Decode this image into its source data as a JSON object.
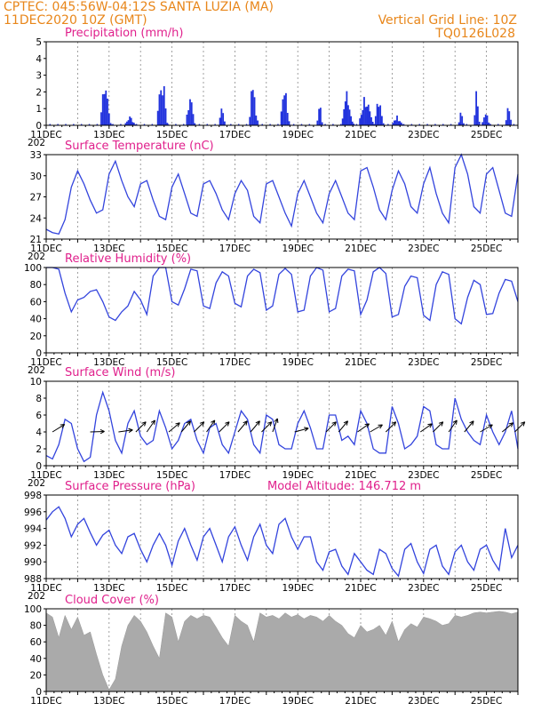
{
  "header": {
    "location": "CPTEC:   045:56W-04:12S   SANTA LUZIA (MA)",
    "run": "11DEC2020 10Z (GMT)",
    "grid_note": "Vertical Grid Line: 10Z",
    "code": "TQ0126L028",
    "altitude_label": "Model Altitude: 146.712 m"
  },
  "colors": {
    "header": "#e8861a",
    "title": "#e0208c",
    "line": "#3344dd",
    "bar": "#2233dd",
    "cloud": "#aaaaaa",
    "grid": "#888888"
  },
  "x_labels": [
    "11DEC",
    "13DEC",
    "15DEC",
    "17DEC",
    "19DEC",
    "21DEC",
    "23DEC",
    "25DEC"
  ],
  "year_fragment": "202",
  "chart_data": [
    {
      "type": "bar",
      "title": "Precipitation (mm/h)",
      "ylim": [
        0,
        5
      ],
      "yticks": [
        "0",
        "1",
        "2",
        "3",
        "4",
        "5"
      ],
      "bursts": [
        {
          "day": 12.9,
          "peak": 3.8,
          "width": 0.35
        },
        {
          "day": 13.7,
          "peak": 0.6,
          "width": 0.4
        },
        {
          "day": 14.7,
          "peak": 4.0,
          "width": 0.35
        },
        {
          "day": 15.6,
          "peak": 2.3,
          "width": 0.3
        },
        {
          "day": 16.6,
          "peak": 1.6,
          "width": 0.2
        },
        {
          "day": 17.6,
          "peak": 3.3,
          "width": 0.3
        },
        {
          "day": 18.6,
          "peak": 3.1,
          "width": 0.3
        },
        {
          "day": 19.7,
          "peak": 1.9,
          "width": 0.2
        },
        {
          "day": 20.6,
          "peak": 2.1,
          "width": 0.4
        },
        {
          "day": 21.2,
          "peak": 2.1,
          "width": 0.5
        },
        {
          "day": 21.6,
          "peak": 2.4,
          "width": 0.3
        },
        {
          "day": 22.2,
          "peak": 0.6,
          "width": 0.4
        },
        {
          "day": 24.2,
          "peak": 0.9,
          "width": 0.2
        },
        {
          "day": 24.7,
          "peak": 2.4,
          "width": 0.2
        },
        {
          "day": 25.0,
          "peak": 0.8,
          "width": 0.3
        },
        {
          "day": 25.7,
          "peak": 2.3,
          "width": 0.2
        }
      ]
    },
    {
      "type": "line",
      "title": "Surface Temperature (nC)",
      "ylim": [
        20,
        33
      ],
      "yticks": [
        "21",
        "24",
        "27",
        "30",
        "33"
      ],
      "x": [
        11.0,
        11.2,
        11.4,
        11.6,
        11.8,
        12.0,
        12.2,
        12.4,
        12.6,
        12.8,
        13.0,
        13.2,
        13.4,
        13.6,
        13.8,
        14.0,
        14.2,
        14.4,
        14.6,
        14.8,
        15.0,
        15.2,
        15.4,
        15.6,
        15.8,
        16.0,
        16.2,
        16.4,
        16.6,
        16.8,
        17.0,
        17.2,
        17.4,
        17.6,
        17.8,
        18.0,
        18.2,
        18.4,
        18.6,
        18.8,
        19.0,
        19.2,
        19.4,
        19.6,
        19.8,
        20.0,
        20.2,
        20.4,
        20.6,
        20.8,
        21.0,
        21.2,
        21.4,
        21.6,
        21.8,
        22.0,
        22.2,
        22.4,
        22.6,
        22.8,
        23.0,
        23.2,
        23.4,
        23.6,
        23.8,
        24.0,
        24.2,
        24.4,
        24.6,
        24.8,
        25.0,
        25.2,
        25.4,
        25.6,
        25.8,
        26.0
      ],
      "y": [
        21.5,
        21.0,
        20.8,
        23.0,
        28.0,
        30.5,
        28.5,
        26.0,
        24.0,
        24.5,
        30.0,
        32.0,
        29.0,
        26.5,
        25.0,
        28.5,
        29.0,
        26.0,
        23.5,
        23.0,
        28.0,
        30.0,
        27.0,
        24.0,
        23.5,
        28.5,
        29.0,
        27.0,
        24.5,
        23.0,
        27.0,
        29.0,
        27.5,
        23.5,
        22.5,
        28.5,
        29.0,
        26.5,
        24.0,
        22.0,
        27.0,
        29.0,
        26.5,
        24.0,
        22.5,
        27.0,
        29.0,
        26.5,
        24.0,
        23.0,
        30.5,
        31.0,
        28.0,
        24.5,
        23.0,
        27.5,
        30.5,
        28.5,
        25.0,
        24.0,
        28.5,
        31.0,
        27.0,
        24.0,
        22.5,
        31.0,
        33.0,
        30.0,
        25.0,
        24.0,
        30.0,
        31.0,
        27.5,
        24.0,
        23.5,
        30.0
      ]
    },
    {
      "type": "line",
      "title": "Relative Humidity (%)",
      "ylim": [
        0,
        100
      ],
      "yticks": [
        "0",
        "20",
        "40",
        "60",
        "80",
        "100"
      ],
      "x": [
        11.0,
        11.2,
        11.4,
        11.6,
        11.8,
        12.0,
        12.2,
        12.4,
        12.6,
        12.8,
        13.0,
        13.2,
        13.4,
        13.6,
        13.8,
        14.0,
        14.2,
        14.4,
        14.6,
        14.8,
        15.0,
        15.2,
        15.4,
        15.6,
        15.8,
        16.0,
        16.2,
        16.4,
        16.6,
        16.8,
        17.0,
        17.2,
        17.4,
        17.6,
        17.8,
        18.0,
        18.2,
        18.4,
        18.6,
        18.8,
        19.0,
        19.2,
        19.4,
        19.6,
        19.8,
        20.0,
        20.2,
        20.4,
        20.6,
        20.8,
        21.0,
        21.2,
        21.4,
        21.6,
        21.8,
        22.0,
        22.2,
        22.4,
        22.6,
        22.8,
        23.0,
        23.2,
        23.4,
        23.6,
        23.8,
        24.0,
        24.2,
        24.4,
        24.6,
        24.8,
        25.0,
        25.2,
        25.4,
        25.6,
        25.8,
        26.0
      ],
      "y": [
        100,
        100,
        98,
        70,
        48,
        62,
        65,
        72,
        74,
        60,
        42,
        38,
        48,
        55,
        72,
        62,
        45,
        90,
        100,
        100,
        60,
        56,
        75,
        98,
        96,
        55,
        52,
        82,
        95,
        90,
        58,
        54,
        90,
        98,
        94,
        50,
        55,
        92,
        99,
        92,
        48,
        50,
        90,
        100,
        97,
        48,
        52,
        90,
        98,
        96,
        45,
        62,
        95,
        100,
        93,
        42,
        45,
        78,
        90,
        88,
        44,
        38,
        80,
        95,
        92,
        40,
        34,
        65,
        85,
        80,
        45,
        46,
        70,
        86,
        84,
        60
      ]
    },
    {
      "type": "line",
      "title": "Surface Wind (m/s)",
      "ylim": [
        0,
        10
      ],
      "yticks": [
        "0",
        "2",
        "4",
        "6",
        "8",
        "10"
      ],
      "x": [
        11.0,
        11.2,
        11.4,
        11.6,
        11.8,
        12.0,
        12.2,
        12.4,
        12.6,
        12.8,
        13.0,
        13.2,
        13.4,
        13.6,
        13.8,
        14.0,
        14.2,
        14.4,
        14.6,
        14.8,
        15.0,
        15.2,
        15.4,
        15.6,
        15.8,
        16.0,
        16.2,
        16.4,
        16.6,
        16.8,
        17.0,
        17.2,
        17.4,
        17.6,
        17.8,
        18.0,
        18.2,
        18.4,
        18.6,
        18.8,
        19.0,
        19.2,
        19.4,
        19.6,
        19.8,
        20.0,
        20.2,
        20.4,
        20.6,
        20.8,
        21.0,
        21.2,
        21.4,
        21.6,
        21.8,
        22.0,
        22.2,
        22.4,
        22.6,
        22.8,
        23.0,
        23.2,
        23.4,
        23.6,
        23.8,
        24.0,
        24.2,
        24.4,
        24.6,
        24.8,
        25.0,
        25.2,
        25.4,
        25.6,
        25.8,
        26.0
      ],
      "y": [
        1.2,
        0.8,
        2.5,
        5.5,
        5.0,
        2.0,
        0.5,
        1.0,
        6.0,
        8.7,
        6.5,
        3.0,
        1.5,
        5.0,
        6.5,
        3.5,
        2.5,
        3.0,
        6.5,
        4.5,
        2.0,
        3.0,
        5.0,
        5.5,
        3.0,
        1.5,
        4.5,
        5.0,
        2.5,
        1.5,
        4.0,
        6.5,
        5.5,
        2.5,
        1.5,
        6.0,
        5.5,
        2.5,
        2.0,
        2.0,
        5.0,
        6.5,
        4.5,
        2.0,
        2.0,
        6.0,
        6.0,
        3.0,
        3.5,
        2.5,
        6.5,
        5.0,
        2.0,
        1.5,
        1.5,
        7.0,
        5.0,
        2.0,
        2.5,
        3.5,
        7.0,
        6.5,
        2.5,
        2.0,
        2.0,
        8.0,
        5.5,
        4.0,
        3.0,
        2.5,
        6.0,
        4.0,
        2.5,
        4.0,
        6.5,
        2.0
      ],
      "arrows": [
        {
          "day": 11.2,
          "dir": 238
        },
        {
          "day": 12.4,
          "dir": 268
        },
        {
          "day": 13.3,
          "dir": 262
        },
        {
          "day": 13.85,
          "dir": 225
        },
        {
          "day": 14.2,
          "dir": 215
        },
        {
          "day": 14.9,
          "dir": 230
        },
        {
          "day": 15.3,
          "dir": 220
        },
        {
          "day": 15.7,
          "dir": 225
        },
        {
          "day": 16.1,
          "dir": 215
        },
        {
          "day": 16.5,
          "dir": 225
        },
        {
          "day": 17.1,
          "dir": 220
        },
        {
          "day": 17.5,
          "dir": 220
        },
        {
          "day": 17.85,
          "dir": 225
        },
        {
          "day": 18.2,
          "dir": 200
        },
        {
          "day": 18.9,
          "dir": 255
        },
        {
          "day": 19.9,
          "dir": 225
        },
        {
          "day": 20.3,
          "dir": 220
        },
        {
          "day": 20.9,
          "dir": 235
        },
        {
          "day": 21.3,
          "dir": 240
        },
        {
          "day": 21.8,
          "dir": 225
        },
        {
          "day": 22.9,
          "dir": 235
        },
        {
          "day": 23.3,
          "dir": 225
        },
        {
          "day": 23.8,
          "dir": 215
        },
        {
          "day": 24.3,
          "dir": 220
        },
        {
          "day": 24.8,
          "dir": 240
        },
        {
          "day": 25.5,
          "dir": 230
        },
        {
          "day": 25.9,
          "dir": 225
        }
      ]
    },
    {
      "type": "line",
      "title": "Surface Pressure (hPa)",
      "ylim": [
        988,
        998
      ],
      "yticks": [
        "988",
        "990",
        "992",
        "994",
        "996",
        "998"
      ],
      "x": [
        11.0,
        11.2,
        11.4,
        11.6,
        11.8,
        12.0,
        12.2,
        12.4,
        12.6,
        12.8,
        13.0,
        13.2,
        13.4,
        13.6,
        13.8,
        14.0,
        14.2,
        14.4,
        14.6,
        14.8,
        15.0,
        15.2,
        15.4,
        15.6,
        15.8,
        16.0,
        16.2,
        16.4,
        16.6,
        16.8,
        17.0,
        17.2,
        17.4,
        17.6,
        17.8,
        18.0,
        18.2,
        18.4,
        18.6,
        18.8,
        19.0,
        19.2,
        19.4,
        19.6,
        19.8,
        20.0,
        20.2,
        20.4,
        20.6,
        20.8,
        21.0,
        21.2,
        21.4,
        21.6,
        21.8,
        22.0,
        22.2,
        22.4,
        22.6,
        22.8,
        23.0,
        23.2,
        23.4,
        23.6,
        23.8,
        24.0,
        24.2,
        24.4,
        24.6,
        24.8,
        25.0,
        25.2,
        25.4,
        25.6,
        25.8,
        26.0
      ],
      "y": [
        995.0,
        996.0,
        996.6,
        995.2,
        993.0,
        994.5,
        995.2,
        993.5,
        992.0,
        993.2,
        993.8,
        992.0,
        991.0,
        993.0,
        993.4,
        991.5,
        990.0,
        992.0,
        993.4,
        992.0,
        989.6,
        992.5,
        994.0,
        992.0,
        990.2,
        993.0,
        994.0,
        992.0,
        990.0,
        993.0,
        994.2,
        992.0,
        990.2,
        993.0,
        994.5,
        992.0,
        991.0,
        994.5,
        995.2,
        993.0,
        991.5,
        993.0,
        993.0,
        990.0,
        989.0,
        991.2,
        991.5,
        989.5,
        988.5,
        991.0,
        990.0,
        989.0,
        988.5,
        991.5,
        991.0,
        989.2,
        988.3,
        991.5,
        992.2,
        990.0,
        988.6,
        991.5,
        992.0,
        989.5,
        988.5,
        991.2,
        992.0,
        990.0,
        989.0,
        991.5,
        992.0,
        990.2,
        989.0,
        994.0,
        990.5,
        992.0
      ]
    },
    {
      "type": "area",
      "title": "Cloud Cover (%)",
      "ylim": [
        0,
        100
      ],
      "yticks": [
        "0",
        "20",
        "40",
        "60",
        "80",
        "100"
      ],
      "x": [
        11.0,
        11.2,
        11.4,
        11.6,
        11.8,
        12.0,
        12.2,
        12.4,
        12.6,
        12.8,
        13.0,
        13.2,
        13.4,
        13.6,
        13.8,
        14.0,
        14.2,
        14.4,
        14.6,
        14.8,
        15.0,
        15.2,
        15.4,
        15.6,
        15.8,
        16.0,
        16.2,
        16.4,
        16.6,
        16.8,
        17.0,
        17.2,
        17.4,
        17.6,
        17.8,
        18.0,
        18.2,
        18.4,
        18.6,
        18.8,
        19.0,
        19.2,
        19.4,
        19.6,
        19.8,
        20.0,
        20.2,
        20.4,
        20.6,
        20.8,
        21.0,
        21.2,
        21.4,
        21.6,
        21.8,
        22.0,
        22.2,
        22.4,
        22.6,
        22.8,
        23.0,
        23.2,
        23.4,
        23.6,
        23.8,
        24.0,
        24.2,
        24.4,
        24.6,
        24.8,
        25.0,
        25.2,
        25.4,
        25.6,
        25.8,
        26.0
      ],
      "y": [
        95,
        90,
        65,
        92,
        75,
        90,
        68,
        72,
        45,
        20,
        2,
        15,
        55,
        80,
        92,
        85,
        72,
        55,
        40,
        95,
        90,
        60,
        85,
        92,
        88,
        92,
        90,
        78,
        65,
        55,
        92,
        85,
        80,
        60,
        95,
        90,
        92,
        88,
        95,
        90,
        93,
        88,
        92,
        90,
        85,
        92,
        85,
        80,
        70,
        65,
        80,
        72,
        75,
        80,
        68,
        85,
        60,
        75,
        82,
        78,
        90,
        88,
        85,
        80,
        82,
        92,
        90,
        92,
        95,
        96,
        95,
        96,
        97,
        96,
        94,
        96
      ]
    }
  ]
}
